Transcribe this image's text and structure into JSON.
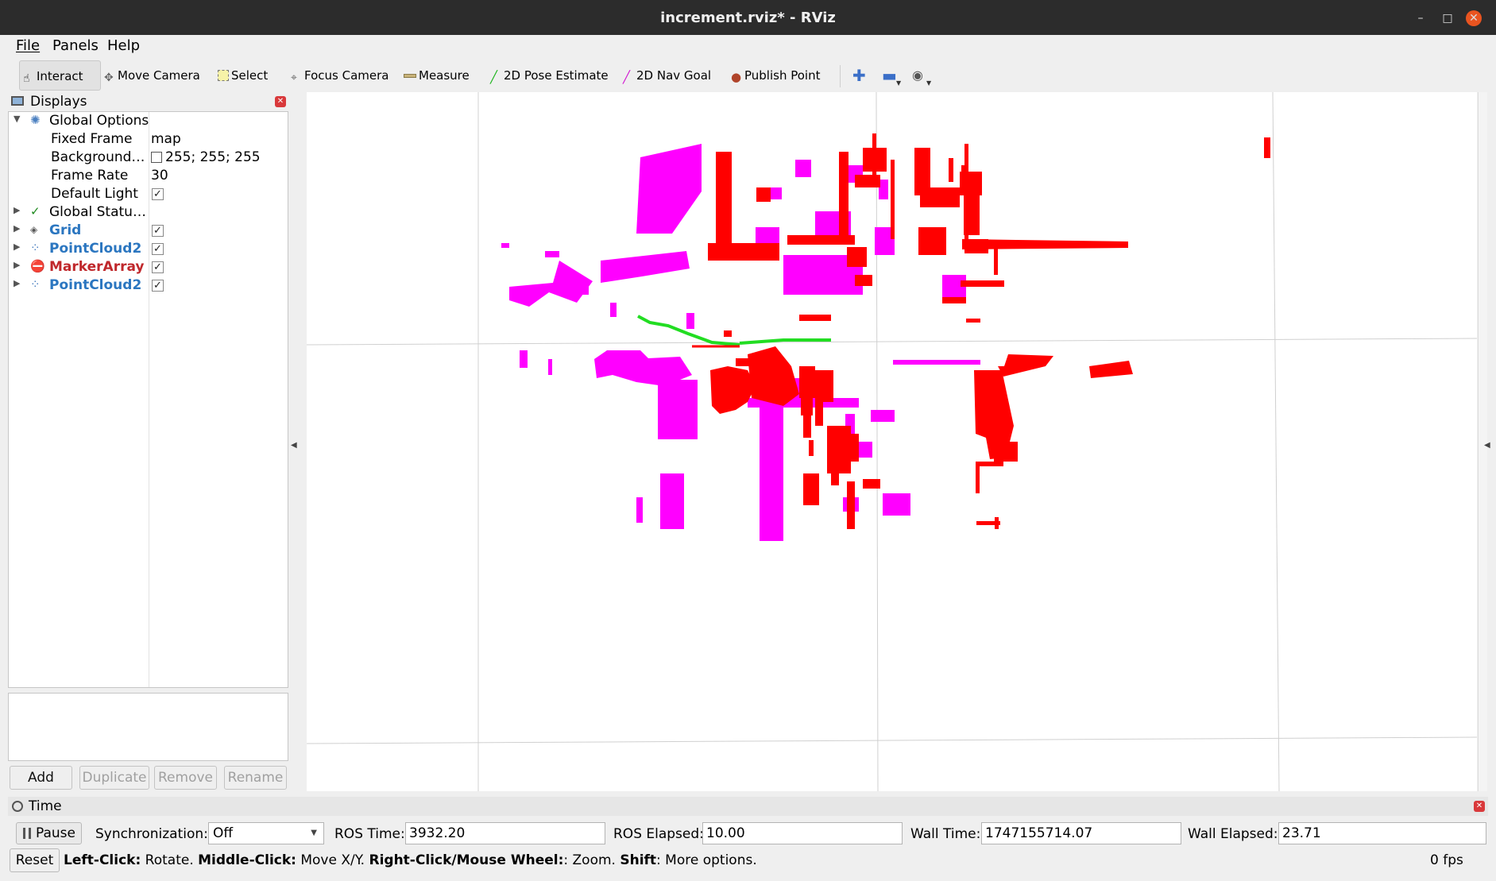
{
  "window": {
    "title": "increment.rviz* - RViz",
    "minimize": "–",
    "maximize": "□",
    "close": "✕"
  },
  "menu": {
    "file": "File",
    "panels": "Panels",
    "help": "Help"
  },
  "toolbar": {
    "interact": "Interact",
    "move_camera": "Move Camera",
    "select": "Select",
    "focus_camera": "Focus Camera",
    "measure": "Measure",
    "pose_estimate": "2D Pose Estimate",
    "nav_goal": "2D Nav Goal",
    "publish_point": "Publish Point"
  },
  "displays": {
    "title": "Displays",
    "global_options": "Global Options",
    "fixed_frame_label": "Fixed Frame",
    "fixed_frame_value": "map",
    "background_label": "Background…",
    "background_value": "255; 255; 255",
    "frame_rate_label": "Frame Rate",
    "frame_rate_value": "30",
    "default_light_label": "Default Light",
    "global_status": "Global Statu…",
    "items": [
      {
        "name": "Grid",
        "checked": true
      },
      {
        "name": "PointCloud2",
        "checked": true
      },
      {
        "name": "MarkerArray",
        "checked": true
      },
      {
        "name": "PointCloud2",
        "checked": true
      }
    ],
    "buttons": {
      "add": "Add",
      "duplicate": "Duplicate",
      "remove": "Remove",
      "rename": "Rename"
    }
  },
  "time": {
    "title": "Time",
    "pause_label": "Pause",
    "sync_label": "Synchronization:",
    "sync_value": "Off",
    "ros_time_label": "ROS Time:",
    "ros_time_value": "3932.20",
    "ros_elapsed_label": "ROS Elapsed:",
    "ros_elapsed_value": "10.00",
    "wall_time_label": "Wall Time:",
    "wall_time_value": "1747155714.07",
    "wall_elapsed_label": "Wall Elapsed:",
    "wall_elapsed_value": "23.71"
  },
  "status": {
    "reset_label": "Reset",
    "left_click_key": "Left-Click:",
    "left_click_desc": " Rotate. ",
    "middle_click_key": "Middle-Click:",
    "middle_click_desc": " Move X/Y. ",
    "right_click_key": "Right-Click/Mouse Wheel:",
    "right_click_desc": ": Zoom. ",
    "shift_key": "Shift",
    "shift_desc": ": More options.",
    "fps": "0 fps"
  },
  "colors": {
    "pointcloud_a": "#ff00ff",
    "pointcloud_b": "#ff0000",
    "path": "#22dd22",
    "grid": "#cfcfcf"
  },
  "icons": [
    "interact-icon",
    "move-camera-icon",
    "select-icon",
    "focus-camera-icon",
    "measure-icon",
    "pose-estimate-icon",
    "nav-goal-icon",
    "publish-point-icon",
    "zoom-in-icon",
    "zoom-out-icon",
    "eye-icon",
    "gear-icon",
    "check-icon",
    "grid-icon",
    "pointcloud-icon",
    "marker-error-icon",
    "clock-icon"
  ]
}
